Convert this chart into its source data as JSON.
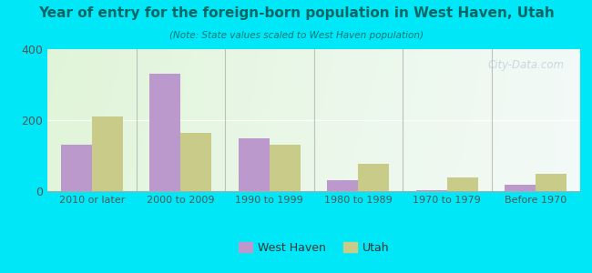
{
  "title": "Year of entry for the foreign-born population in West Haven, Utah",
  "subtitle": "(Note: State values scaled to West Haven population)",
  "categories": [
    "2010 or later",
    "2000 to 2009",
    "1990 to 1999",
    "1980 to 1989",
    "1970 to 1979",
    "Before 1970"
  ],
  "west_haven": [
    130,
    330,
    150,
    30,
    2,
    18
  ],
  "utah": [
    210,
    165,
    130,
    78,
    38,
    50
  ],
  "west_haven_color": "#bb99cc",
  "utah_color": "#c8cc88",
  "background_outer": "#00e8f8",
  "ylim": [
    0,
    400
  ],
  "yticks": [
    0,
    200,
    400
  ],
  "bar_width": 0.35,
  "watermark": "City-Data.com",
  "title_color": "#006666",
  "subtitle_color": "#007777",
  "tick_color": "#555555"
}
